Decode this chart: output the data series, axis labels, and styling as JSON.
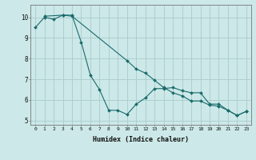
{
  "xlabel": "Humidex (Indice chaleur)",
  "ylabel": "",
  "bg_color": "#cce8e8",
  "grid_color": "#aacccc",
  "line_color": "#1a6b6b",
  "xlim": [
    -0.5,
    23.5
  ],
  "ylim": [
    4.8,
    10.6
  ],
  "yticks": [
    5,
    6,
    7,
    8,
    9,
    10
  ],
  "xticks": [
    0,
    1,
    2,
    3,
    4,
    5,
    6,
    7,
    8,
    9,
    10,
    11,
    12,
    13,
    14,
    15,
    16,
    17,
    18,
    19,
    20,
    21,
    22,
    23
  ],
  "line1_x": [
    0,
    1,
    2,
    3,
    4,
    5,
    6,
    7,
    8,
    9,
    10,
    11,
    12,
    13,
    14,
    15,
    16,
    17,
    18,
    19,
    20,
    21,
    22,
    23
  ],
  "line1_y": [
    9.5,
    10.0,
    9.9,
    10.1,
    10.1,
    8.8,
    7.2,
    6.5,
    5.5,
    5.5,
    5.3,
    5.8,
    6.1,
    6.55,
    6.55,
    6.6,
    6.45,
    6.35,
    6.35,
    5.8,
    5.8,
    5.5,
    5.25,
    5.45
  ],
  "line2_x": [
    1,
    3,
    4,
    10,
    11,
    12,
    13,
    14,
    15,
    16,
    17,
    18,
    19,
    20,
    21,
    22,
    23
  ],
  "line2_y": [
    10.05,
    10.1,
    10.05,
    7.9,
    7.5,
    7.3,
    6.95,
    6.6,
    6.35,
    6.2,
    5.95,
    5.95,
    5.75,
    5.7,
    5.5,
    5.25,
    5.45
  ]
}
